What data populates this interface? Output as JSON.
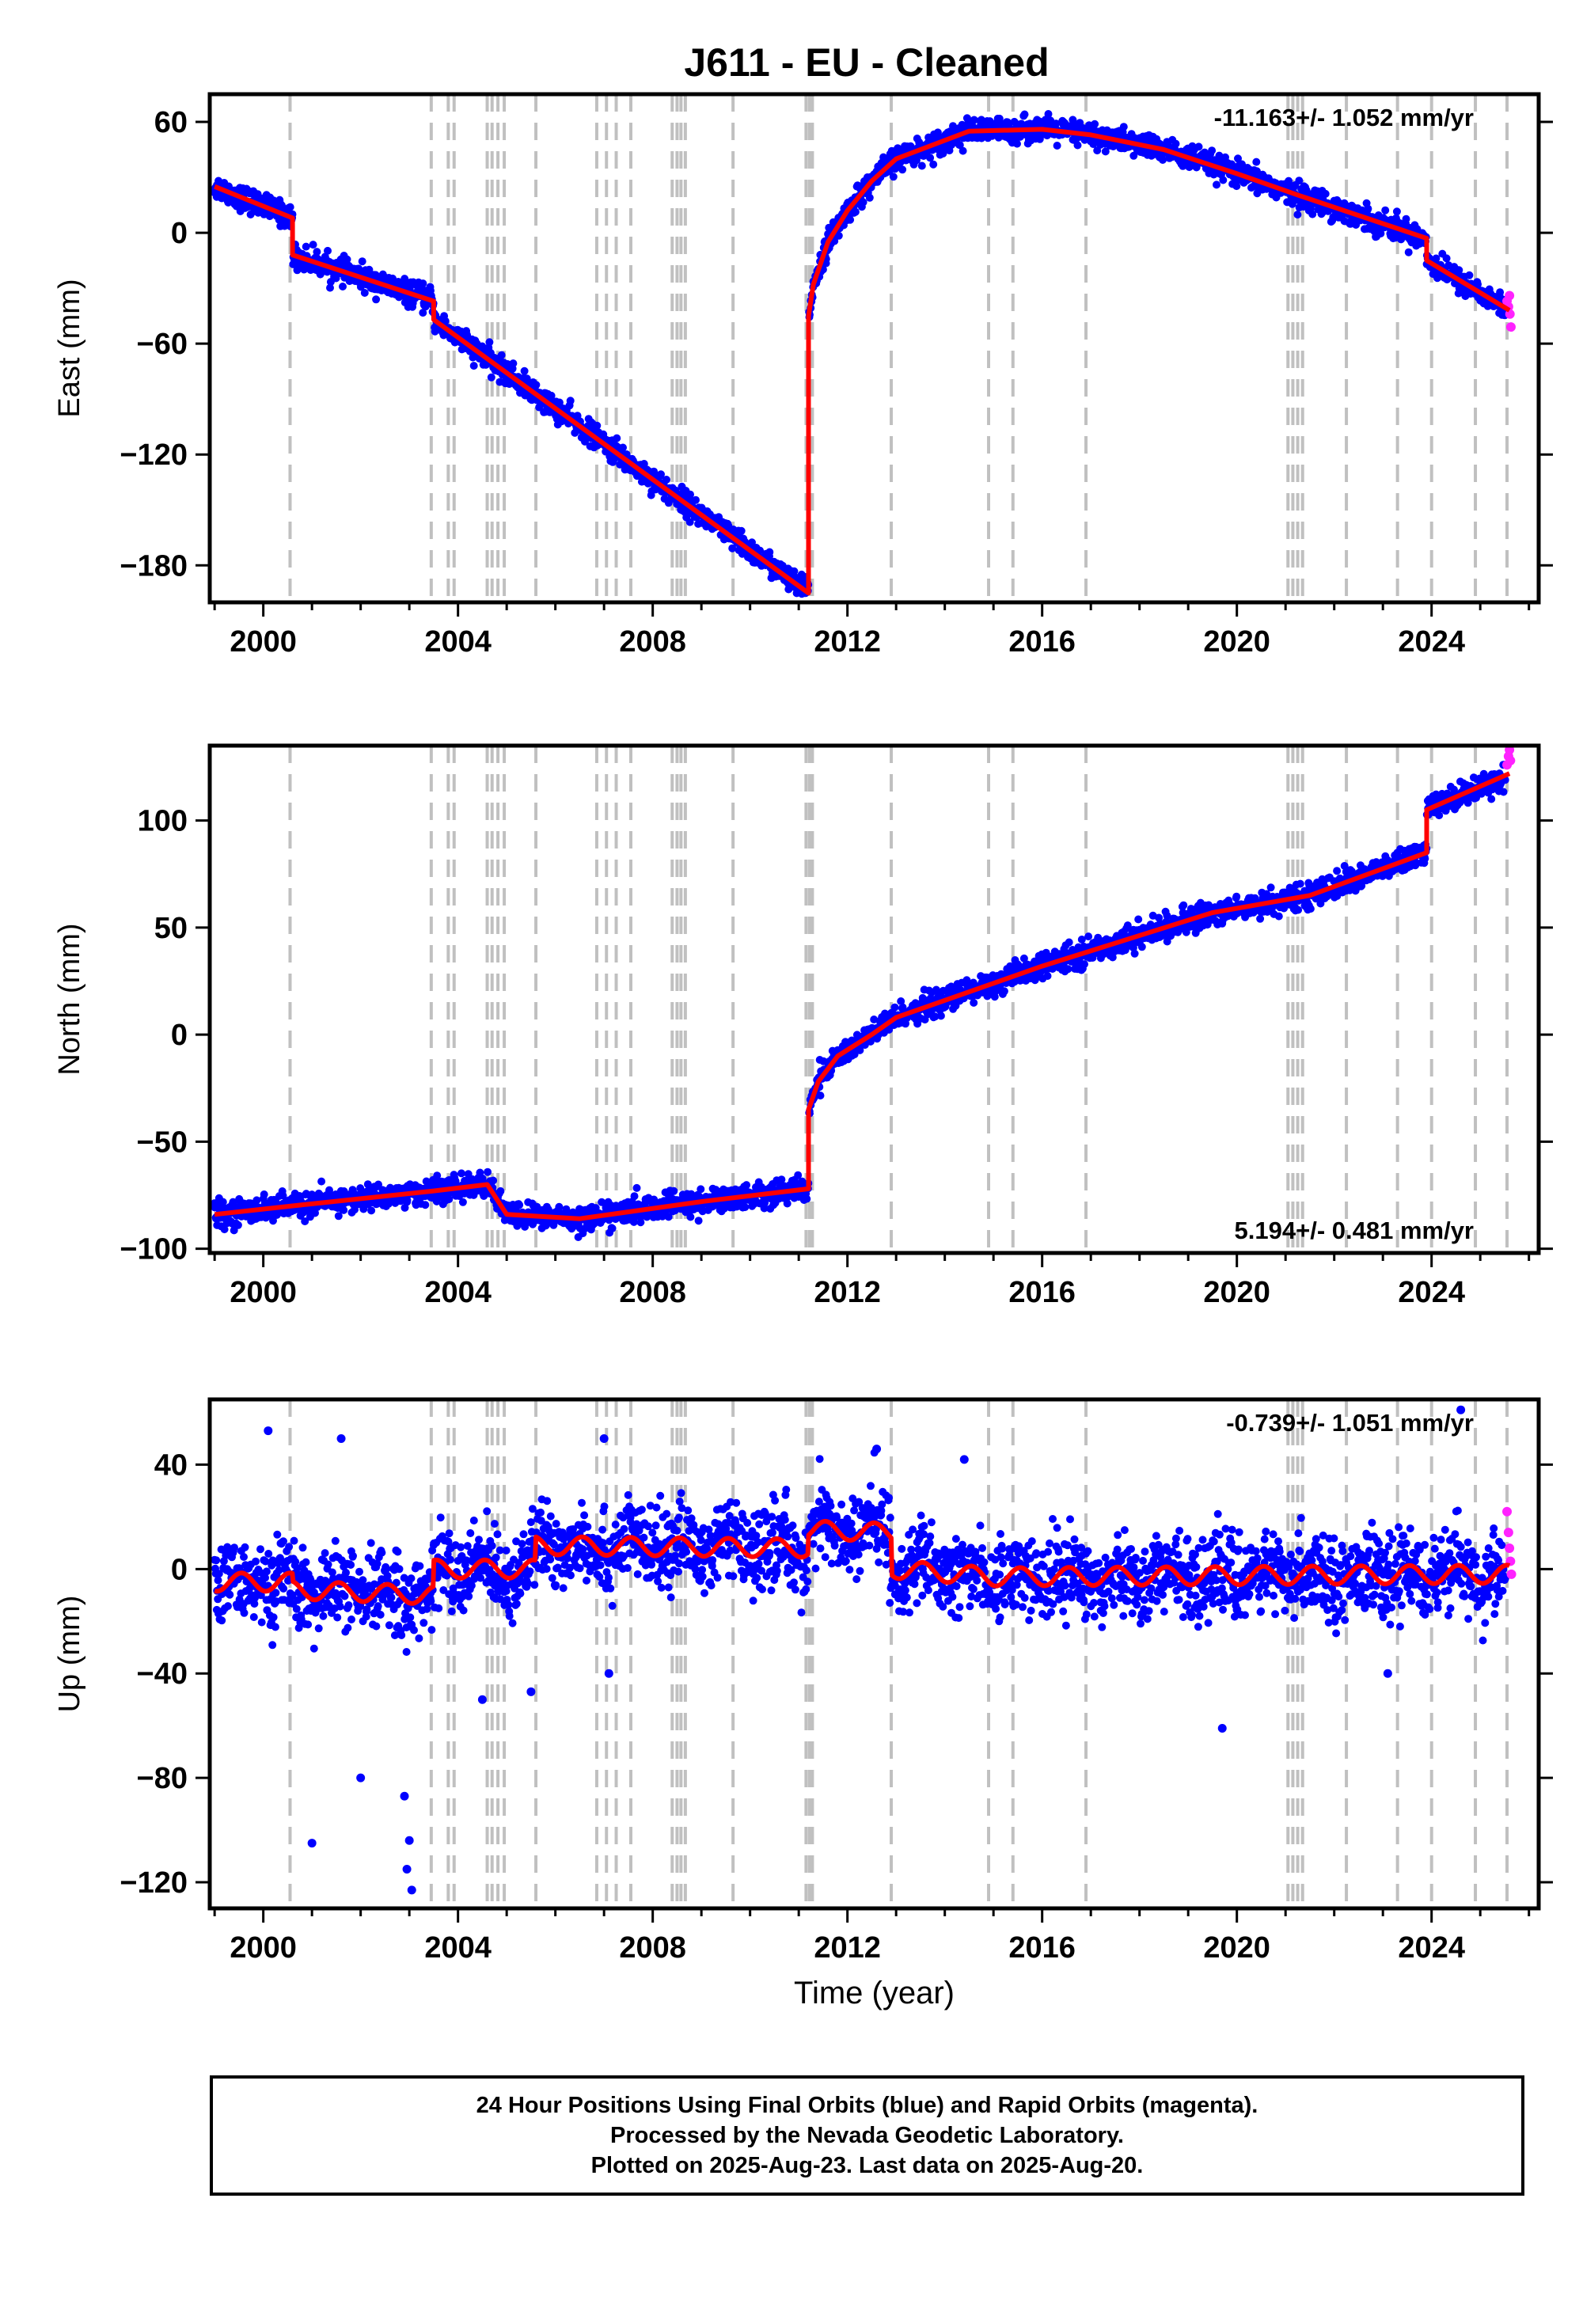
{
  "title": "J611  - EU - Cleaned",
  "colors": {
    "final_points": "#0000ff",
    "rapid_points": "#ff22ff",
    "model": "#ff0000",
    "event_lines": "#c0c0c0",
    "frame": "#000000"
  },
  "footer": {
    "line1": "24 Hour Positions Using Final Orbits (blue) and Rapid Orbits (magenta).",
    "line2": "Processed by the Nevada Geodetic Laboratory.",
    "line3": "Plotted on 2025-Aug-23. Last data on 2025-Aug-20."
  },
  "chart_data": [
    {
      "type": "scatter",
      "name": "east",
      "ylabel": "East (mm)",
      "rate_label": "-11.163+/- 1.052 mm/yr",
      "xlim": [
        1998.9,
        2026.2
      ],
      "ylim": [
        -200,
        75
      ],
      "xticks": [
        2000,
        2004,
        2008,
        2012,
        2016,
        2020,
        2024
      ],
      "xtick_labels": [
        "2000",
        "2004",
        "2008",
        "2012",
        "2016",
        "2020",
        "2024"
      ],
      "yticks": [
        60,
        0,
        -60,
        -120,
        -180
      ],
      "ytick_labels": [
        "60",
        "0",
        "−60",
        "−120",
        "−180"
      ],
      "trend": [
        [
          1999.0,
          25
        ],
        [
          2000.6,
          8
        ],
        [
          2000.6,
          -12
        ],
        [
          2003.5,
          -37
        ],
        [
          2003.5,
          -47
        ],
        [
          2011.2,
          -195
        ],
        [
          2011.2,
          -45
        ],
        [
          2011.3,
          -28
        ],
        [
          2011.6,
          -5
        ],
        [
          2012.0,
          12
        ],
        [
          2012.5,
          28
        ],
        [
          2013.0,
          40
        ],
        [
          2014.5,
          55
        ],
        [
          2016.0,
          56
        ],
        [
          2017.0,
          53
        ],
        [
          2018.5,
          45
        ],
        [
          2020.0,
          32
        ],
        [
          2021.3,
          20
        ],
        [
          2023.9,
          -3
        ],
        [
          2023.9,
          -15
        ],
        [
          2025.6,
          -42
        ]
      ],
      "rapid_points": [
        [
          2025.55,
          -37
        ],
        [
          2025.58,
          -40
        ],
        [
          2025.61,
          -44
        ],
        [
          2025.63,
          -51
        ],
        [
          2025.6,
          -34
        ]
      ]
    },
    {
      "type": "scatter",
      "name": "north",
      "ylabel": "North (mm)",
      "rate_label": "5.194+/- 0.481 mm/yr",
      "xlim": [
        1998.9,
        2026.2
      ],
      "ylim": [
        -102,
        135
      ],
      "xticks": [
        2000,
        2004,
        2008,
        2012,
        2016,
        2020,
        2024
      ],
      "xtick_labels": [
        "2000",
        "2004",
        "2008",
        "2012",
        "2016",
        "2020",
        "2024"
      ],
      "yticks": [
        100,
        50,
        0,
        -50,
        -100
      ],
      "ytick_labels": [
        "100",
        "50",
        "0",
        "−50",
        "−100"
      ],
      "trend": [
        [
          1999.0,
          -84
        ],
        [
          2000.6,
          -80
        ],
        [
          2003.5,
          -73
        ],
        [
          2004.6,
          -70
        ],
        [
          2005.0,
          -84
        ],
        [
          2006.5,
          -86
        ],
        [
          2009.0,
          -78
        ],
        [
          2011.2,
          -72
        ],
        [
          2011.2,
          -35
        ],
        [
          2011.4,
          -22
        ],
        [
          2011.8,
          -10
        ],
        [
          2012.5,
          0
        ],
        [
          2013.0,
          8
        ],
        [
          2016.0,
          32
        ],
        [
          2019.5,
          57
        ],
        [
          2020.0,
          59
        ],
        [
          2021.5,
          65
        ],
        [
          2023.9,
          85
        ],
        [
          2023.9,
          105
        ],
        [
          2025.6,
          122
        ]
      ],
      "rapid_points": [
        [
          2025.55,
          126
        ],
        [
          2025.58,
          130
        ],
        [
          2025.6,
          133
        ],
        [
          2025.62,
          128
        ]
      ]
    },
    {
      "type": "scatter",
      "name": "up",
      "ylabel": "Up (mm)",
      "rate_label": "-0.739+/- 1.051 mm/yr",
      "xlabel": "Time (year)",
      "xlim": [
        1998.9,
        2026.2
      ],
      "ylim": [
        -130,
        65
      ],
      "xticks": [
        2000,
        2004,
        2008,
        2012,
        2016,
        2020,
        2024
      ],
      "xtick_labels": [
        "2000",
        "2004",
        "2008",
        "2012",
        "2016",
        "2020",
        "2024"
      ],
      "yticks": [
        40,
        0,
        -40,
        -80,
        -120
      ],
      "ytick_labels": [
        "40",
        "0",
        "−40",
        "−80",
        "−120"
      ],
      "trend": [
        [
          1999.0,
          -5
        ],
        [
          2000.6,
          -5
        ],
        [
          2000.6,
          -8
        ],
        [
          2003.5,
          -10
        ],
        [
          2003.5,
          0
        ],
        [
          2005.6,
          0
        ],
        [
          2005.6,
          9
        ],
        [
          2011.2,
          8
        ],
        [
          2011.2,
          15
        ],
        [
          2012.9,
          14
        ],
        [
          2012.9,
          0
        ],
        [
          2015.0,
          -3
        ],
        [
          2025.0,
          -2
        ],
        [
          2025.6,
          -2
        ]
      ],
      "rapid_points": [
        [
          2025.55,
          22
        ],
        [
          2025.58,
          14
        ],
        [
          2025.6,
          8
        ],
        [
          2025.62,
          3
        ],
        [
          2025.64,
          -2
        ]
      ],
      "outliers": [
        [
          2000.1,
          53
        ],
        [
          2001.6,
          50
        ],
        [
          2002.9,
          -87
        ],
        [
          2003.0,
          -104
        ],
        [
          2002.95,
          -115
        ],
        [
          2003.05,
          -123
        ],
        [
          2001.0,
          -105
        ],
        [
          2002.0,
          -80
        ],
        [
          2004.5,
          -50
        ],
        [
          2005.5,
          -47
        ],
        [
          2007.1,
          -40
        ],
        [
          2007.0,
          50
        ],
        [
          2012.6,
          46
        ],
        [
          2014.4,
          42
        ],
        [
          2019.7,
          -61
        ],
        [
          2024.6,
          61
        ],
        [
          2023.1,
          -40
        ]
      ]
    }
  ],
  "event_lines": [
    2000.55,
    2003.45,
    2003.8,
    2003.92,
    2004.6,
    2004.7,
    2004.82,
    2004.95,
    2005.6,
    2006.85,
    2007.05,
    2007.25,
    2007.55,
    2008.4,
    2008.5,
    2008.58,
    2008.67,
    2009.65,
    2011.15,
    2011.22,
    2011.28,
    2012.9,
    2014.9,
    2015.4,
    2016.9,
    2021.05,
    2021.15,
    2021.25,
    2021.35,
    2022.25,
    2023.3,
    2024.0,
    2024.9,
    2025.55
  ]
}
